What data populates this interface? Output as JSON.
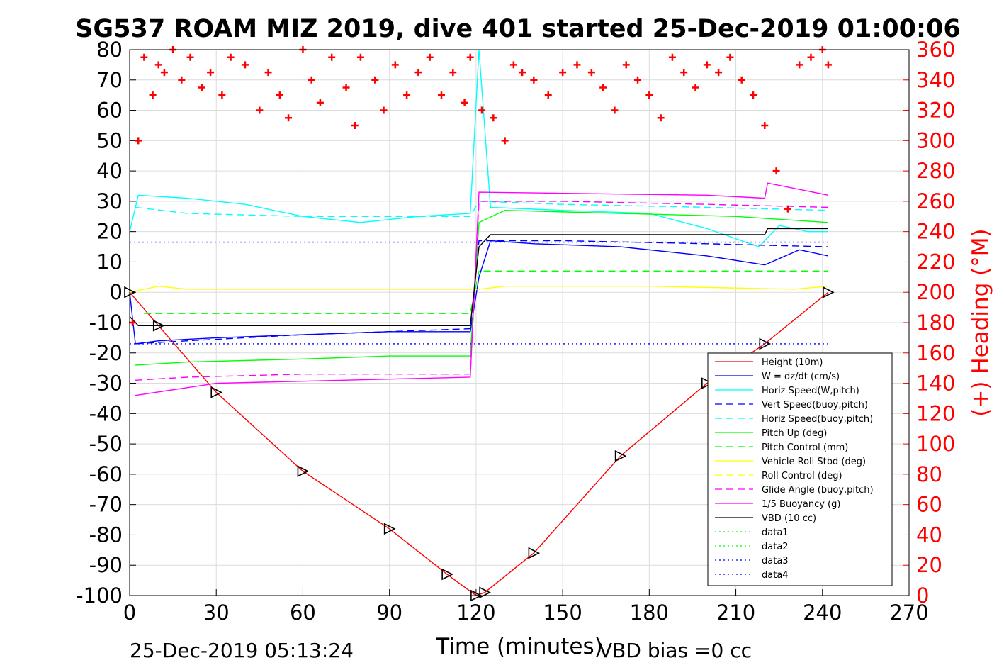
{
  "chart_data": {
    "type": "line",
    "title": "SG537 ROAM MIZ 2019, dive 401 started 25-Dec-2019 01:00:06",
    "xlabel": "Time (minutes)",
    "ylabel_right": "(+) Heading (°M)",
    "xlim": [
      0,
      270
    ],
    "ylim": [
      -100,
      80
    ],
    "ylim_right": [
      0,
      360
    ],
    "x_ticks": [
      0,
      30,
      60,
      90,
      120,
      150,
      180,
      210,
      240,
      270
    ],
    "y_ticks": [
      -100,
      -90,
      -80,
      -70,
      -60,
      -50,
      -40,
      -30,
      -20,
      -10,
      0,
      10,
      20,
      30,
      40,
      50,
      60,
      70,
      80
    ],
    "y_ticks_right": [
      0,
      20,
      40,
      60,
      80,
      100,
      120,
      140,
      160,
      180,
      200,
      220,
      240,
      260,
      280,
      300,
      320,
      340,
      360
    ],
    "grid": true,
    "legend_position": "lower-right",
    "footer_left": "25-Dec-2019 05:13:24",
    "footer_right": "VBD bias =0 cc",
    "series": [
      {
        "name": "Height (10m)",
        "color": "#ff0000",
        "style": "solid",
        "x": [
          0,
          10,
          30,
          60,
          90,
          110,
          120,
          123,
          140,
          170,
          200,
          220,
          242
        ],
        "y": [
          0,
          -11,
          -33,
          -59,
          -78,
          -93,
          -100,
          -99,
          -86,
          -54,
          -30,
          -17,
          0
        ]
      },
      {
        "name": "W = dz/dt (cm/s)",
        "color": "#0000ff",
        "style": "solid",
        "x": [
          0,
          2,
          10,
          30,
          60,
          90,
          118,
          121,
          125,
          140,
          170,
          200,
          220,
          232,
          242
        ],
        "y": [
          0,
          -17,
          -16,
          -15,
          -14,
          -13,
          -13,
          5,
          17,
          16,
          15,
          12,
          9,
          14,
          12
        ]
      },
      {
        "name": "Horiz Speed(W,pitch)",
        "color": "#00ffff",
        "style": "solid",
        "x": [
          0,
          3,
          20,
          40,
          60,
          80,
          100,
          118,
          121,
          125,
          150,
          180,
          200,
          218,
          225,
          235,
          242
        ],
        "y": [
          20,
          32,
          31,
          29,
          25,
          23,
          25,
          26,
          80,
          28,
          27,
          26,
          21,
          15,
          22,
          20,
          20
        ]
      },
      {
        "name": "Vert Speed(buoy,pitch)",
        "color": "#0000ff",
        "style": "dash",
        "x": [
          2,
          20,
          60,
          118,
          121,
          150,
          200,
          242
        ],
        "y": [
          -17,
          -16,
          -14,
          -12,
          17,
          17,
          16,
          15
        ]
      },
      {
        "name": "Horiz Speed(buoy,pitch)",
        "color": "#00ffff",
        "style": "dash",
        "x": [
          2,
          20,
          60,
          118,
          121,
          150,
          200,
          242
        ],
        "y": [
          28,
          26,
          25,
          25,
          30,
          29,
          28,
          27
        ]
      },
      {
        "name": "Pitch Up (deg)",
        "color": "#00ff00",
        "style": "solid",
        "x": [
          2,
          20,
          60,
          90,
          118,
          121,
          130,
          170,
          210,
          242
        ],
        "y": [
          -24,
          -23,
          -22,
          -21,
          -21,
          23,
          27,
          26,
          25,
          23
        ]
      },
      {
        "name": "Pitch Control (mm)",
        "color": "#00ff00",
        "style": "dash",
        "x": [
          5,
          118,
          121,
          242
        ],
        "y": [
          -7,
          -7,
          7,
          7
        ]
      },
      {
        "name": "Vehicle Roll Stbd (deg)",
        "color": "#ffff00",
        "style": "solid",
        "x": [
          0,
          5,
          10,
          20,
          60,
          118,
          121,
          130,
          180,
          230,
          242
        ],
        "y": [
          0,
          1,
          2,
          1,
          1,
          1,
          1,
          2,
          2,
          1,
          2
        ]
      },
      {
        "name": "Roll Control (deg)",
        "color": "#ffff00",
        "style": "dash",
        "x": [],
        "y": []
      },
      {
        "name": "Glide Angle (buoy,pitch)",
        "color": "#ff00ff",
        "style": "dash",
        "x": [
          2,
          20,
          60,
          118,
          121,
          150,
          200,
          242
        ],
        "y": [
          -29,
          -28,
          -27,
          -27,
          30,
          30,
          29,
          28
        ]
      },
      {
        "name": "1/5 Buoyancy (g)",
        "color": "#ff00ff",
        "style": "solid",
        "x": [
          2,
          30,
          118,
          121,
          200,
          220,
          221,
          242
        ],
        "y": [
          -34,
          -30,
          -28,
          33,
          32,
          31,
          36,
          32
        ]
      },
      {
        "name": "VBD (10 cc)",
        "color": "#000000",
        "style": "solid",
        "x": [
          0,
          3,
          118,
          121,
          125,
          220,
          221,
          242
        ],
        "y": [
          -8,
          -11,
          -11,
          15,
          19,
          19,
          21,
          21
        ]
      },
      {
        "name": "data1",
        "color": "#00ff00",
        "style": "dot",
        "x": [],
        "y": []
      },
      {
        "name": "data2",
        "color": "#00ff00",
        "style": "dot",
        "x": [],
        "y": []
      },
      {
        "name": "data3",
        "color": "#0000ff",
        "style": "dot",
        "x": [
          0,
          242
        ],
        "y": [
          16.5,
          16.5
        ]
      },
      {
        "name": "data4",
        "color": "#0000ff",
        "style": "dot",
        "x": [
          0,
          242
        ],
        "y": [
          -17,
          -17
        ]
      }
    ],
    "heading_series": {
      "name": "(+) Heading (°M)",
      "color": "#ff0000",
      "axis": "right",
      "x": [
        1,
        3,
        5,
        8,
        10,
        12,
        15,
        18,
        21,
        25,
        28,
        32,
        35,
        40,
        45,
        48,
        52,
        55,
        60,
        63,
        66,
        70,
        75,
        78,
        80,
        85,
        88,
        92,
        96,
        100,
        104,
        108,
        112,
        116,
        118,
        122,
        126,
        130,
        133,
        136,
        140,
        145,
        150,
        155,
        160,
        164,
        168,
        172,
        176,
        180,
        184,
        188,
        192,
        196,
        200,
        204,
        208,
        212,
        216,
        220,
        224,
        228,
        232,
        236,
        240,
        242
      ],
      "y": [
        180,
        300,
        355,
        330,
        350,
        345,
        360,
        340,
        355,
        335,
        345,
        330,
        355,
        350,
        320,
        345,
        330,
        315,
        360,
        340,
        325,
        355,
        335,
        310,
        355,
        340,
        320,
        350,
        330,
        345,
        355,
        330,
        345,
        325,
        355,
        320,
        315,
        300,
        350,
        345,
        340,
        330,
        345,
        350,
        345,
        335,
        320,
        350,
        340,
        330,
        315,
        355,
        345,
        335,
        350,
        345,
        355,
        340,
        330,
        310,
        280,
        255,
        350,
        355,
        360,
        350
      ]
    }
  }
}
